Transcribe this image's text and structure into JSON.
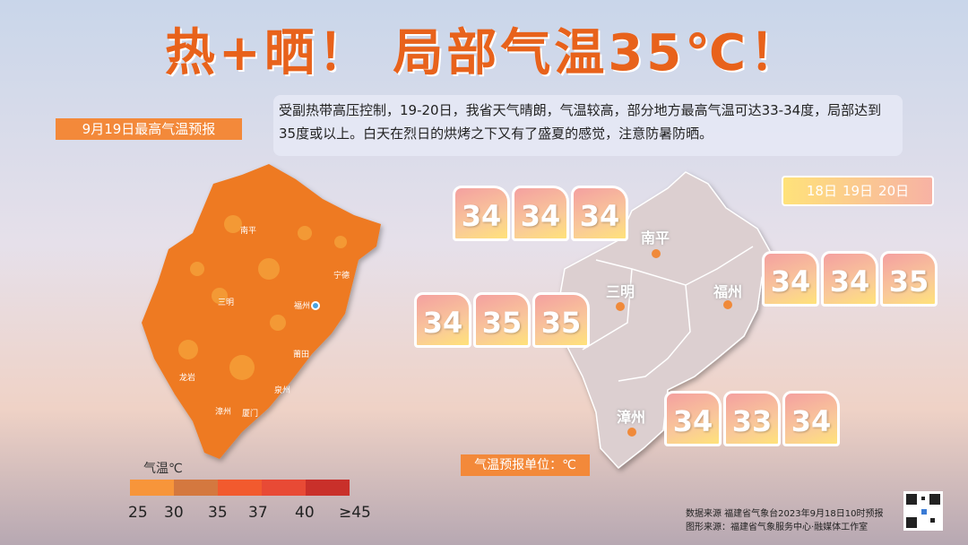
{
  "title": "热+晒！ 局部气温35℃！",
  "map_label": "9月19日最高气温预报",
  "description": "受副热带高压控制，19-20日，我省天气晴朗，气温较高，部分地方最高气温可达33-34度，局部达到35度或以上。白天在烈日的烘烤之下又有了盛夏的感觉，注意防暑防晒。",
  "left_map_cities": [
    "南平",
    "宁德",
    "三明",
    "福州",
    "莆田",
    "龙岩",
    "泉州",
    "漳州",
    "厦门"
  ],
  "legend": {
    "title": "气温℃",
    "labels": [
      "25",
      "30",
      "35",
      "37",
      "40",
      "≥45"
    ]
  },
  "date_legend": [
    "18日",
    "19日",
    "20日"
  ],
  "forecasts": [
    {
      "city": "南平",
      "temps": [
        34,
        34,
        34
      ]
    },
    {
      "city": "三明",
      "temps": [
        34,
        35,
        35
      ]
    },
    {
      "city": "福州",
      "temps": [
        34,
        34,
        35
      ]
    },
    {
      "city": "漳州",
      "temps": [
        34,
        33,
        34
      ]
    }
  ],
  "unit_note": "气温预报单位：℃",
  "source": [
    "数据来源  福建省气象台2023年9月18日10时预报",
    "图形来源：福建省气象服务中心·融媒体工作室"
  ]
}
